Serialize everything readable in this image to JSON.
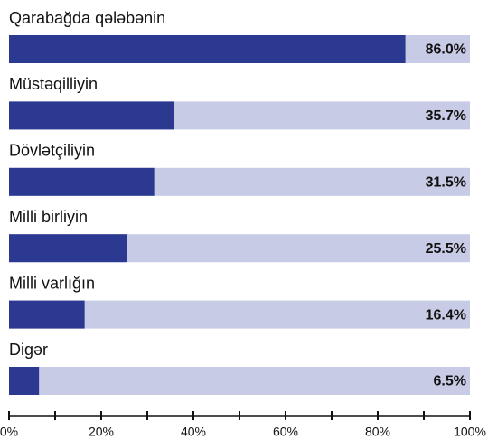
{
  "chart_data": {
    "type": "bar",
    "categories": [
      "Qarabağda qələbənin",
      "Müstəqilliyin",
      "Dövlətçiliyin",
      "Milli birliyin",
      "Milli varlığın",
      "Digər"
    ],
    "values": [
      86.0,
      35.7,
      31.5,
      25.5,
      16.4,
      6.5
    ],
    "value_labels": [
      "86.0%",
      "35.7%",
      "31.5%",
      "25.5%",
      "16.4%",
      "6.5%"
    ],
    "color": "#2b3990",
    "track_color": "#c8cbe5",
    "xlim": [
      0,
      100
    ],
    "xticks": [
      {
        "value": 0,
        "label": "0%"
      },
      {
        "value": 20,
        "label": "20%"
      },
      {
        "value": 40,
        "label": "40%"
      },
      {
        "value": 60,
        "label": "60%"
      },
      {
        "value": 80,
        "label": "80%"
      },
      {
        "value": 100,
        "label": "100%"
      }
    ],
    "xminor_ticks": [
      10,
      30,
      50,
      70,
      90
    ]
  }
}
